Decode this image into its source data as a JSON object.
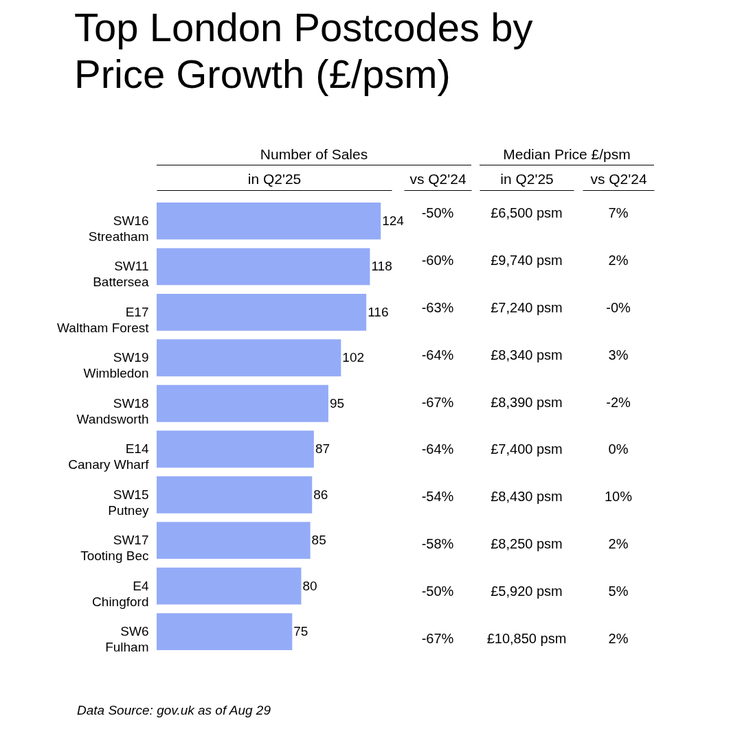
{
  "chart_data": [
    {
      "type": "bar",
      "orientation": "horizontal",
      "title": "Top London Postcodes by Price Growth (£/psm)",
      "subtitle": "Number of Sales",
      "xlabel": "in Q2'25",
      "tick_labels": "y",
      "data_labels": true,
      "color": "#94abf7",
      "categories": [
        "SW16\nStreatham",
        "SW11\nBattersea",
        "E17\nWaltham Forest",
        "SW19\nWimbledon",
        "SW18\nWandsworth",
        "E14\nCanary Wharf",
        "SW15\nPutney",
        "SW17\nTooting Bec",
        "E4\nChingford",
        "SW6\nFulham"
      ],
      "values": [
        124,
        118,
        116,
        102,
        95,
        87,
        86,
        85,
        80,
        75
      ],
      "annotations": [
        "Data Source: gov.uk as of Aug 29"
      ]
    },
    {
      "type": "other",
      "xlabel": "vs Q2'24",
      "values": [
        -50,
        -60,
        -63,
        -64,
        -67,
        -64,
        -54,
        -58,
        -50,
        -67
      ],
      "value_labels": [
        "-50%",
        "-60%",
        "-63%",
        "-64%",
        "-67%",
        "-64%",
        "-54%",
        "-58%",
        "-50%",
        "-67%"
      ]
    },
    {
      "type": "other",
      "subtitle": "Median Price £/psm",
      "xlabel": "in Q2'25",
      "values": [
        6500,
        9740,
        7240,
        8340,
        8390,
        7400,
        8430,
        8250,
        5920,
        10850
      ],
      "value_labels": [
        "£6,500 psm",
        "£9,740 psm",
        "£7,240 psm",
        "£8,340 psm",
        "£8,390 psm",
        "£7,400 psm",
        "£8,430 psm",
        "£8,250 psm",
        "£5,920 psm",
        "£10,850 psm"
      ]
    },
    {
      "type": "other",
      "xlabel": "vs Q2'24",
      "values": [
        7,
        2,
        0,
        3,
        -2,
        0,
        10,
        2,
        5,
        2
      ],
      "value_labels": [
        "7%",
        "2%",
        "-0%",
        "3%",
        "-2%",
        "0%",
        "10%",
        "2%",
        "5%",
        "2%"
      ]
    }
  ]
}
